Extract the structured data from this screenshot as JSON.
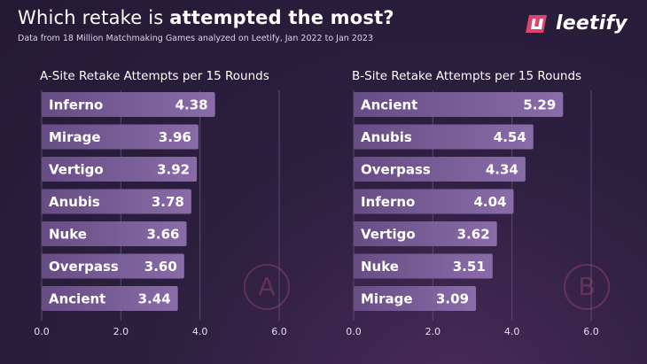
{
  "header": {
    "title_prefix": "Which retake is ",
    "title_emphasis": "attempted the most?",
    "subtitle": "Data from 18 Million Matchmaking Games analyzed on Leetify, Jan 2022 to Jan 2023"
  },
  "brand": {
    "name": "leetify",
    "logo_icon": "leetify-logo-icon",
    "accent": "#e0436a"
  },
  "watermarks": {
    "a": "A",
    "b": "B"
  },
  "colors": {
    "bar": "#6a4f88",
    "bar_highlight": "#8e70ad",
    "grid": "#5a4a70"
  },
  "chart_data": [
    {
      "type": "bar",
      "orientation": "horizontal",
      "title": "A-Site Retake Attempts per 15 Rounds",
      "categories": [
        "Inferno",
        "Mirage",
        "Vertigo",
        "Anubis",
        "Nuke",
        "Overpass",
        "Ancient"
      ],
      "values": [
        4.38,
        3.96,
        3.92,
        3.78,
        3.66,
        3.6,
        3.44
      ],
      "value_labels": [
        "4.38",
        "3.96",
        "3.92",
        "3.78",
        "3.66",
        "3.60",
        "3.44"
      ],
      "xlim": [
        0,
        6
      ],
      "xticks": [
        0,
        2,
        4,
        6
      ],
      "xtick_labels": [
        "0.0",
        "2.0",
        "4.0",
        "6.0"
      ],
      "xlabel": "",
      "ylabel": "",
      "grid": true
    },
    {
      "type": "bar",
      "orientation": "horizontal",
      "title": "B-Site Retake Attempts per 15 Rounds",
      "categories": [
        "Ancient",
        "Anubis",
        "Overpass",
        "Inferno",
        "Vertigo",
        "Nuke",
        "Mirage"
      ],
      "values": [
        5.29,
        4.54,
        4.34,
        4.04,
        3.62,
        3.51,
        3.09
      ],
      "value_labels": [
        "5.29",
        "4.54",
        "4.34",
        "4.04",
        "3.62",
        "3.51",
        "3.09"
      ],
      "xlim": [
        0,
        6
      ],
      "xticks": [
        0,
        2,
        4,
        6
      ],
      "xtick_labels": [
        "0.0",
        "2.0",
        "4.0",
        "6.0"
      ],
      "xlabel": "",
      "ylabel": "",
      "grid": true
    }
  ]
}
